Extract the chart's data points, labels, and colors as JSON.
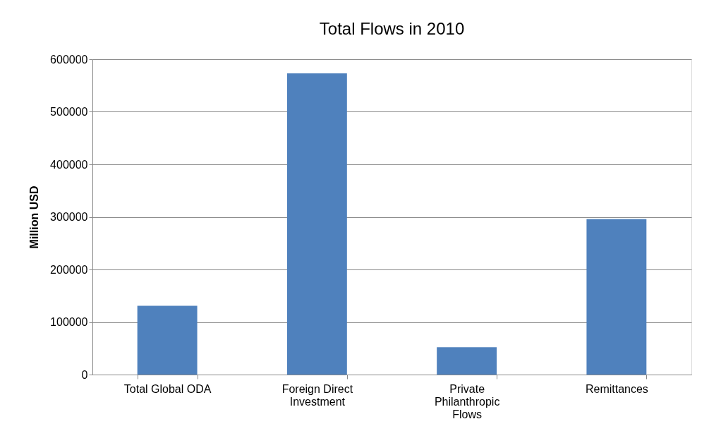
{
  "chart_data": {
    "type": "bar",
    "title": "Total Flows in 2010",
    "ylabel": "Million USD",
    "categories": [
      "Total Global ODA",
      "Foreign Direct Investment",
      "Private Philanthropic Flows",
      "Remittances"
    ],
    "values": [
      131000,
      573000,
      52000,
      296000
    ],
    "color": "#4f81bd",
    "ylim": [
      0,
      600000
    ],
    "yticks": [
      0,
      100000,
      200000,
      300000,
      400000,
      500000,
      600000
    ],
    "grid": "y"
  }
}
